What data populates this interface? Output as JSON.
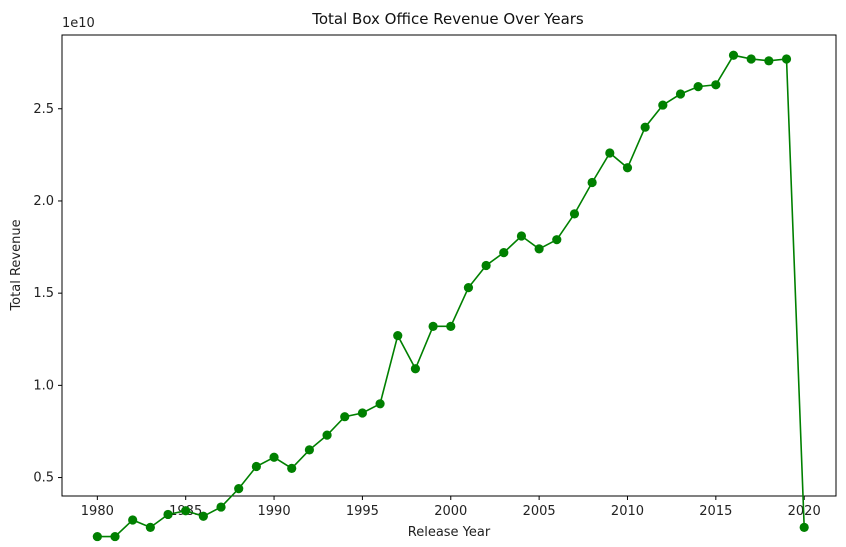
{
  "chart_data": {
    "type": "line",
    "title": "Total Box Office Revenue Over Years",
    "xlabel": "Release Year",
    "ylabel": "Total Revenue",
    "y_offset_label": "1e10",
    "xlim": [
      1978.0,
      2021.8
    ],
    "ylim": [
      0.4,
      2.9
    ],
    "y_multiplier": 10000000000,
    "x_ticks": [
      1980,
      1985,
      1990,
      1995,
      2000,
      2005,
      2010,
      2015,
      2020
    ],
    "y_ticks": [
      0.5,
      1.0,
      1.5,
      2.0,
      2.5
    ],
    "y_tick_labels": [
      "0.5",
      "1.0",
      "1.5",
      "2.0",
      "2.5"
    ],
    "grid": false,
    "series": [
      {
        "color": "#008000",
        "marker": "circle",
        "x": [
          1980,
          1981,
          1982,
          1983,
          1984,
          1985,
          1986,
          1987,
          1988,
          1989,
          1990,
          1991,
          1992,
          1993,
          1994,
          1995,
          1996,
          1997,
          1998,
          1999,
          2000,
          2001,
          2002,
          2003,
          2004,
          2005,
          2006,
          2007,
          2008,
          2009,
          2010,
          2011,
          2012,
          2013,
          2014,
          2015,
          2016,
          2017,
          2018,
          2019,
          2020
        ],
        "y": [
          0.18,
          0.18,
          0.27,
          0.23,
          0.3,
          0.32,
          0.29,
          0.34,
          0.44,
          0.56,
          0.61,
          0.55,
          0.65,
          0.73,
          0.83,
          0.85,
          0.9,
          1.27,
          1.09,
          1.32,
          1.32,
          1.53,
          1.65,
          1.72,
          1.81,
          1.74,
          1.79,
          1.93,
          2.1,
          2.26,
          2.18,
          2.4,
          2.52,
          2.58,
          2.62,
          2.63,
          2.79,
          2.77,
          2.76,
          2.77,
          0.23
        ]
      }
    ]
  }
}
